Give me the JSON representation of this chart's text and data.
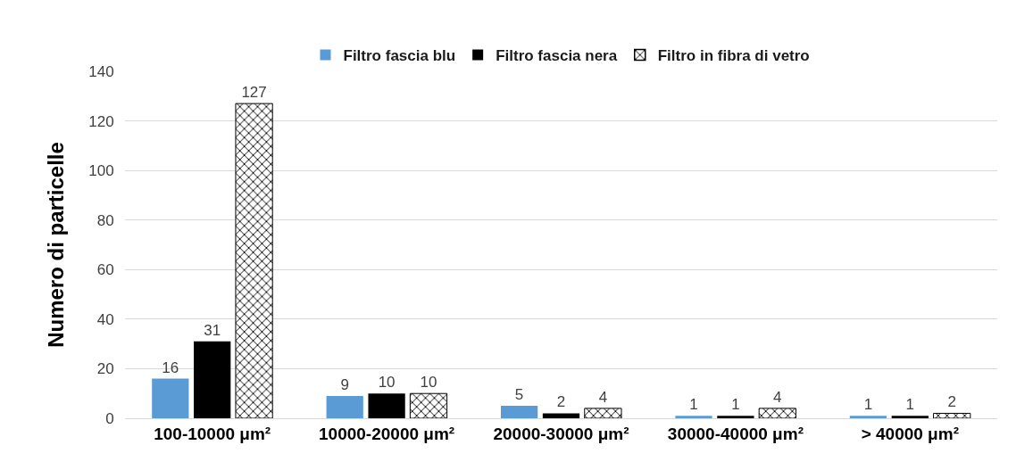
{
  "chart_data": {
    "type": "bar",
    "ylabel": "Numero di particelle",
    "categories": [
      "100-10000 μm²",
      "10000-20000 μm²",
      "20000-30000 μm²",
      "30000-40000 μm²",
      "> 40000 μm²"
    ],
    "series": [
      {
        "name": "Filtro fascia blu",
        "color": "#5b9bd5",
        "values": [
          16,
          9,
          5,
          1,
          1
        ]
      },
      {
        "name": "Filtro fascia nera",
        "color": "#000000",
        "values": [
          31,
          10,
          2,
          1,
          1
        ]
      },
      {
        "name": "Filtro in fibra di vetro",
        "color": "#000000",
        "values": [
          127,
          10,
          4,
          4,
          2
        ]
      }
    ],
    "ylim": [
      0,
      140
    ],
    "yticks": [
      0,
      20,
      40,
      60,
      80,
      100,
      120,
      140
    ],
    "grid": "y",
    "legend": "top",
    "data_labels": true
  }
}
